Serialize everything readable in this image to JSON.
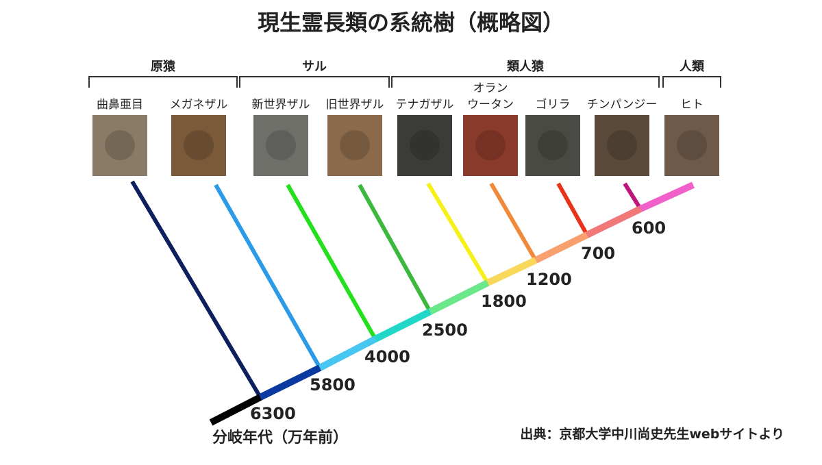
{
  "title": "現生霊長類の系統樹（概略図）",
  "groups": [
    {
      "label": "原猿"
    },
    {
      "label": "サル"
    },
    {
      "label": "類人猿"
    },
    {
      "label": "人類"
    }
  ],
  "species": [
    {
      "lines": [
        "曲鼻亜目"
      ]
    },
    {
      "lines": [
        "メガネザル"
      ]
    },
    {
      "lines": [
        "新世界ザル"
      ]
    },
    {
      "lines": [
        "旧世界ザル"
      ]
    },
    {
      "lines": [
        "テナガザル"
      ]
    },
    {
      "lines": [
        "オラン",
        "ウータン"
      ]
    },
    {
      "lines": [
        "ゴリラ"
      ]
    },
    {
      "lines": [
        "チンパンジー"
      ]
    },
    {
      "lines": [
        "ヒト"
      ]
    }
  ],
  "divergences": [
    6300,
    5800,
    4000,
    2500,
    1800,
    1200,
    700,
    600
  ],
  "axis_label": "分岐年代（万年前）",
  "source": "出典：京都大学中川尚史先生webサイトより"
}
